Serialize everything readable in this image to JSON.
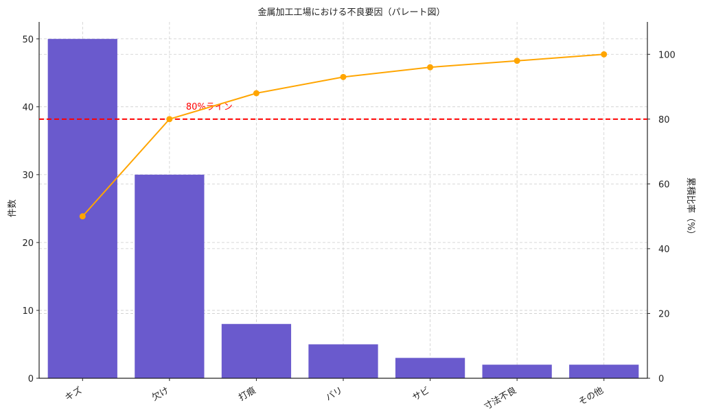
{
  "chart_data": {
    "type": "bar",
    "title": "金属加工工場における不良要因（パレート図）",
    "xlabel": "",
    "ylabel": "件数",
    "y2label": "累積比率（%）",
    "categories": [
      "キズ",
      "欠け",
      "打痕",
      "バリ",
      "サビ",
      "寸法不良",
      "その他"
    ],
    "series": [
      {
        "name": "件数",
        "kind": "bar",
        "axis": "left",
        "color": "#6A5ACD",
        "values": [
          50,
          30,
          8,
          5,
          3,
          2,
          2
        ]
      },
      {
        "name": "累積比率",
        "kind": "line",
        "axis": "right",
        "color": "#FFA500",
        "values": [
          50,
          80,
          88,
          93,
          96,
          98,
          100
        ]
      }
    ],
    "ylim": [
      0,
      52.5
    ],
    "y2lim": [
      0,
      110
    ],
    "yticks": [
      0,
      10,
      20,
      30,
      40,
      50
    ],
    "y2ticks": [
      0,
      20,
      40,
      60,
      80,
      100
    ],
    "reference_line": {
      "axis": "right",
      "value": 80,
      "label": "80%ライン",
      "color": "#FF0000",
      "style": "dashed"
    },
    "grid": true
  }
}
